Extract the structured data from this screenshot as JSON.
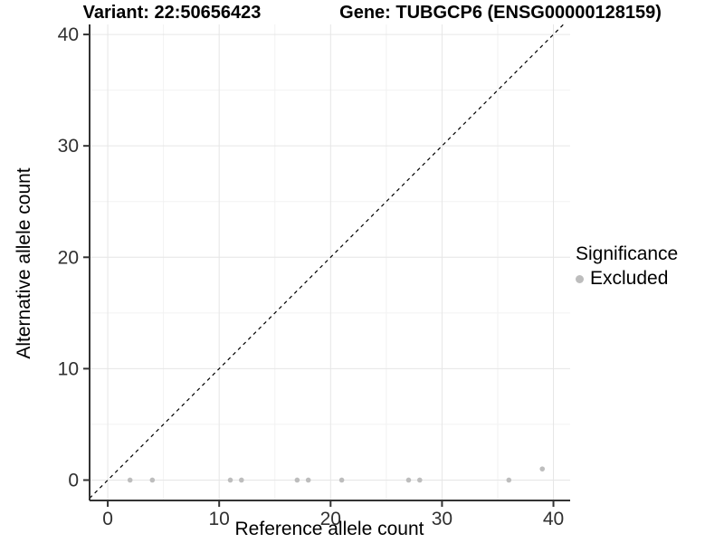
{
  "chart_data": {
    "type": "scatter",
    "title_left": "Variant: 22:50656423",
    "title_right": "Gene: TUBGCP6 (ENSG00000128159)",
    "xlabel": "Reference allele count",
    "ylabel": "Alternative allele count",
    "xlim": [
      -1.63,
      41.5
    ],
    "ylim": [
      -1.83,
      40.9
    ],
    "x_major_ticks": [
      0,
      10,
      20,
      30,
      40
    ],
    "y_major_ticks": [
      0,
      10,
      20,
      30,
      40
    ],
    "x_minor_ticks": [
      5,
      15,
      25,
      35
    ],
    "y_minor_ticks": [
      5,
      15,
      25,
      35
    ],
    "grid": true,
    "identity_line": {
      "style": "dashed",
      "slope": 1,
      "intercept": 0,
      "color": "#000000"
    },
    "series": [
      {
        "name": "Excluded",
        "color": "#bdbdbd",
        "points": [
          [
            2,
            0
          ],
          [
            4,
            0
          ],
          [
            11,
            0
          ],
          [
            12,
            0
          ],
          [
            17,
            0
          ],
          [
            18,
            0
          ],
          [
            21,
            0
          ],
          [
            27,
            0
          ],
          [
            28,
            0
          ],
          [
            36,
            0
          ],
          [
            39,
            1
          ]
        ]
      }
    ],
    "legend": {
      "title": "Significance",
      "position": "right",
      "items": [
        {
          "label": "Excluded",
          "color": "#bdbdbd"
        }
      ]
    }
  },
  "colors": {
    "background": "#ffffff",
    "axis_line": "#333333",
    "tick_mark": "#333333",
    "tick_text": "#303030",
    "grid_major": "#e6e6e6",
    "grid_minor": "#f2f2f2"
  }
}
